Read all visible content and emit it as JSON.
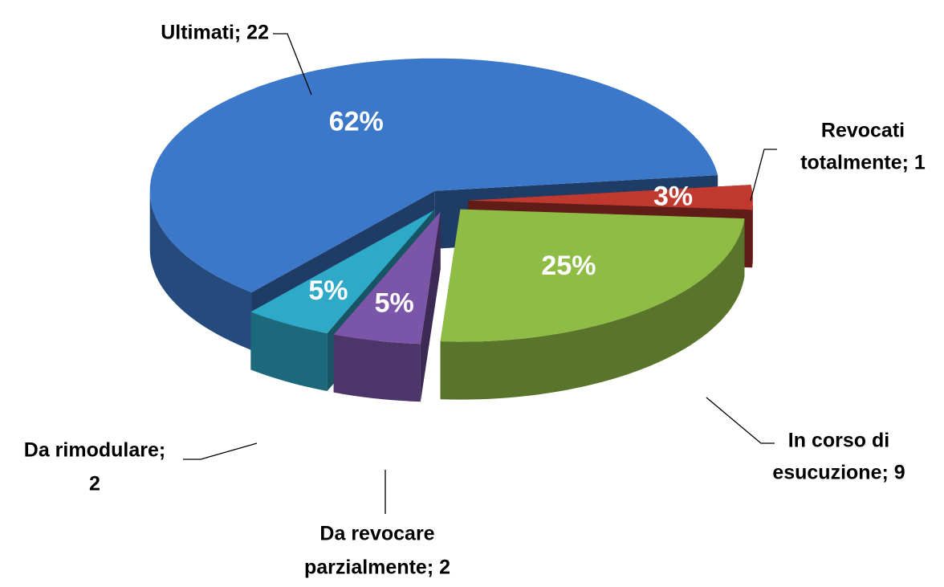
{
  "chart_data": {
    "type": "pie",
    "labels": [
      [
        "Ultimati; 22"
      ],
      [
        "Revocati",
        "totalmente; 1"
      ],
      [
        "In corso di",
        "esucuzione; 9"
      ],
      [
        "Da revocare",
        "parzialmente; 2"
      ],
      [
        "Da rimodulare;",
        "2"
      ]
    ],
    "values": [
      62,
      3,
      25,
      5,
      5
    ],
    "value_labels": [
      "62%",
      "3%",
      "25%",
      "5%",
      "5%"
    ],
    "colors": [
      "#3b78c9",
      "#c0392f",
      "#8fbc45",
      "#7a55a8",
      "#2ea9c8"
    ]
  }
}
